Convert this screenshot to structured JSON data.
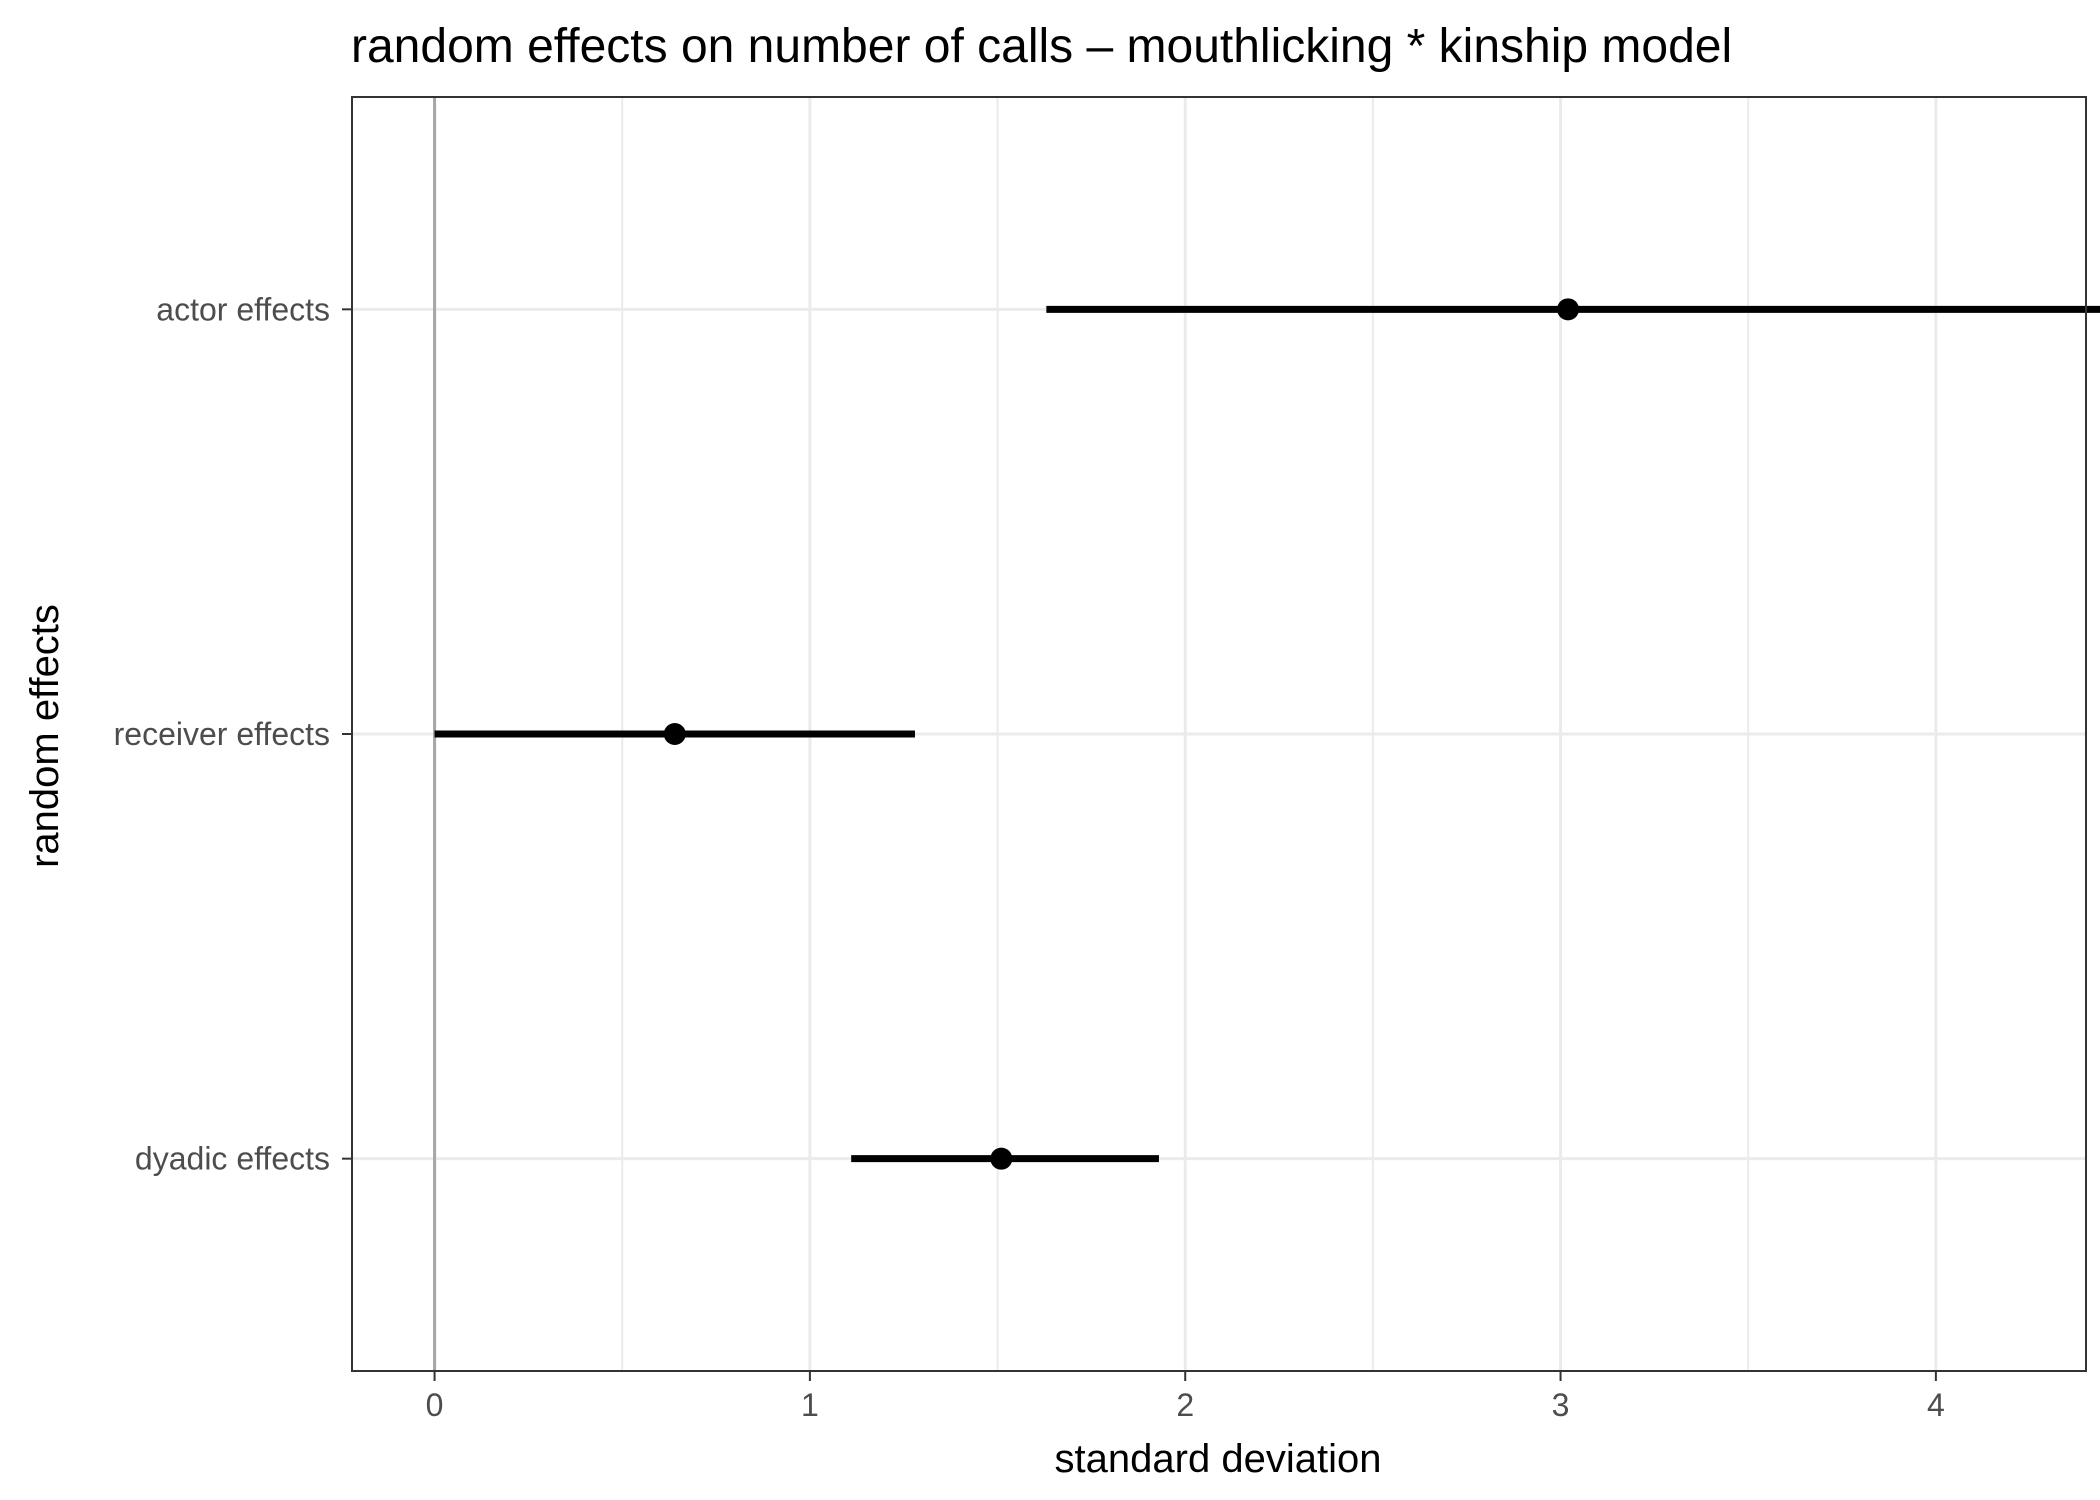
{
  "chart_data": {
    "type": "pointrange",
    "title": "random effects on number of calls – mouthlicking * kinship model",
    "xlabel": "standard deviation",
    "ylabel": "random effects",
    "xlim": [
      -0.22,
      4.4
    ],
    "x_ticks": [
      0,
      1,
      2,
      3,
      4
    ],
    "x_minor_ticks": [
      0.5,
      1.5,
      2.5,
      3.5
    ],
    "reference_line_x": 0,
    "grid": true,
    "categories": [
      "actor effects",
      "receiver effects",
      "dyadic effects"
    ],
    "points": [
      {
        "label": "actor effects",
        "estimate": 3.02,
        "lower": 1.63,
        "upper": 4.48
      },
      {
        "label": "receiver effects",
        "estimate": 0.64,
        "lower": 0.0,
        "upper": 1.28
      },
      {
        "label": "dyadic effects",
        "estimate": 1.51,
        "lower": 1.11,
        "upper": 1.93
      }
    ],
    "colors": {
      "mark": "#000000",
      "grid": "#ebebeb",
      "reference": "#a6a6a6",
      "panel_border": "#333333"
    }
  }
}
